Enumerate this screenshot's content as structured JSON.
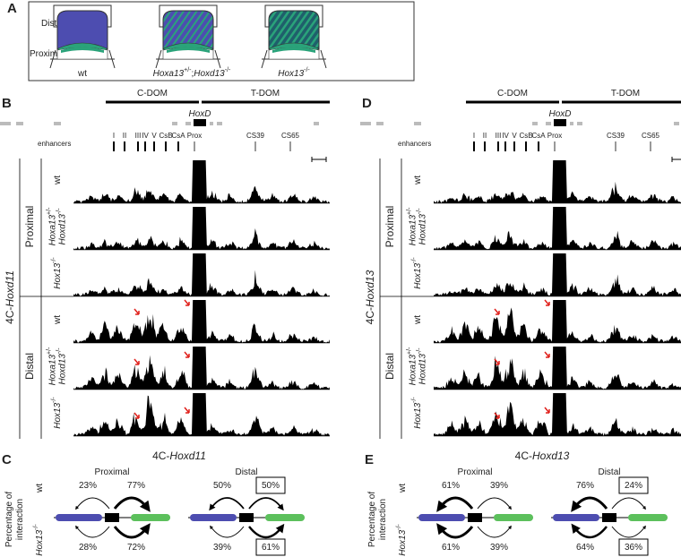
{
  "panel_a": {
    "letter": "A",
    "distal": "Distal",
    "proximal": "Proximal",
    "genotypes": [
      "wt",
      "Hoxa13+/-;Hoxd13-/-",
      "Hox13-/-"
    ]
  },
  "panel_b": {
    "letter": "B",
    "viewpoint": "4C-Hoxd11",
    "c_dom": "C-DOM",
    "t_dom": "T-DOM",
    "locus": "HoxD",
    "enhancers_label": "enhancers",
    "enhancers": [
      "I",
      "II",
      "III",
      "IV",
      "V",
      "CsB",
      "CsA",
      "Prox",
      "CS39",
      "CS65"
    ],
    "groups": [
      {
        "name": "Proximal",
        "rows": [
          [
            "wt"
          ],
          [
            "Hoxa13+/-",
            "Hoxd13-/-"
          ],
          [
            "Hox13-/-"
          ]
        ]
      },
      {
        "name": "Distal",
        "rows": [
          [
            "wt"
          ],
          [
            "Hoxa13+/-",
            "Hoxd13-/-"
          ],
          [
            "Hox13-/-"
          ]
        ]
      }
    ]
  },
  "panel_d": {
    "letter": "D",
    "viewpoint": "4C-Hoxd13",
    "c_dom": "C-DOM",
    "t_dom": "T-DOM",
    "locus": "HoxD",
    "enhancers_label": "enhancers",
    "enhancers": [
      "I",
      "II",
      "III",
      "IV",
      "V",
      "CsB",
      "CsA",
      "Prox",
      "CS39",
      "CS65"
    ],
    "groups": [
      {
        "name": "Proximal",
        "rows": [
          [
            "wt"
          ],
          [
            "Hoxa13+/-",
            "Hoxd13-/-"
          ],
          [
            "Hox13-/-"
          ]
        ]
      },
      {
        "name": "Distal",
        "rows": [
          [
            "wt"
          ],
          [
            "Hoxa13+/-",
            "Hoxd13-/-"
          ],
          [
            "Hox13-/-"
          ]
        ]
      }
    ]
  },
  "panel_c": {
    "letter": "C",
    "title": "4C-Hoxd11",
    "y_label": [
      "Percentage of",
      "interaction"
    ],
    "row_labels": [
      "wt",
      "Hox13-/-"
    ],
    "conditions": [
      {
        "name": "Proximal",
        "wt": [
          "23%",
          "77%"
        ],
        "mutant": [
          "28%",
          "72%"
        ]
      },
      {
        "name": "Distal",
        "wt": [
          "50%",
          "50%"
        ],
        "mutant": [
          "39%",
          "61%"
        ]
      }
    ]
  },
  "panel_e": {
    "letter": "E",
    "title": "4C-Hoxd13",
    "y_label": [
      "Percentage of",
      "interaction"
    ],
    "row_labels": [
      "wt",
      "Hox13-/-"
    ],
    "conditions": [
      {
        "name": "Proximal",
        "wt": [
          "61%",
          "39%"
        ],
        "mutant": [
          "61%",
          "39%"
        ]
      },
      {
        "name": "Distal",
        "wt": [
          "76%",
          "24%"
        ],
        "mutant": [
          "64%",
          "36%"
        ]
      }
    ]
  }
}
